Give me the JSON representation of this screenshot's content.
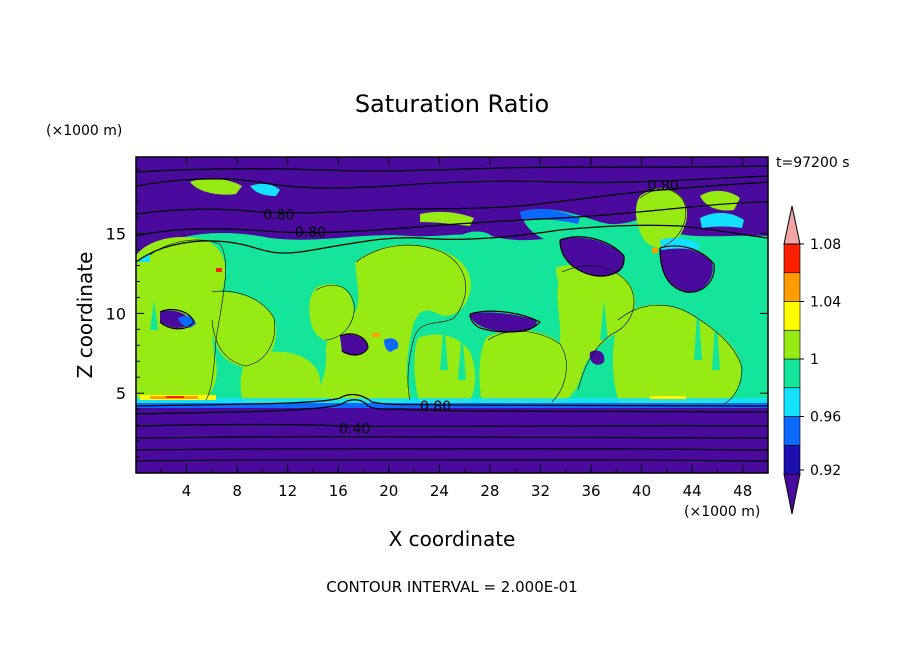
{
  "chart_data": {
    "type": "heatmap",
    "title": "Saturation Ratio",
    "xlabel": "X coordinate",
    "ylabel": "Z coordinate",
    "x_unit": "(×1000 m)",
    "y_unit": "(×1000 m)",
    "time_label": "t=97200 s",
    "footer": "CONTOUR INTERVAL = 2.000E-01",
    "xlim": [
      0,
      50
    ],
    "ylim": [
      0,
      19.8
    ],
    "x_ticks": [
      "4",
      "8",
      "12",
      "16",
      "20",
      "24",
      "28",
      "32",
      "36",
      "40",
      "44",
      "48"
    ],
    "y_ticks": [
      "5",
      "10",
      "15"
    ],
    "contour_labels": [
      {
        "text": "0.80",
        "x": 41.7,
        "z": 18.0
      },
      {
        "text": "0.80",
        "x": 11.3,
        "z": 16.2
      },
      {
        "text": "0.80",
        "x": 13.8,
        "z": 15.1
      },
      {
        "text": "0.80",
        "x": 23.7,
        "z": 4.2
      },
      {
        "text": "0.40",
        "x": 17.3,
        "z": 2.8
      }
    ],
    "colorbar": {
      "levels": [
        "1.08",
        "1.04",
        "1",
        "0.96",
        "0.92"
      ],
      "colors": [
        "#4a0a9e",
        "#1a10b0",
        "#0a6aff",
        "#14e0ff",
        "#14e59a",
        "#98ea14",
        "#ffff00",
        "#ff9c00",
        "#ff2000",
        "#f3a6a6"
      ]
    }
  }
}
